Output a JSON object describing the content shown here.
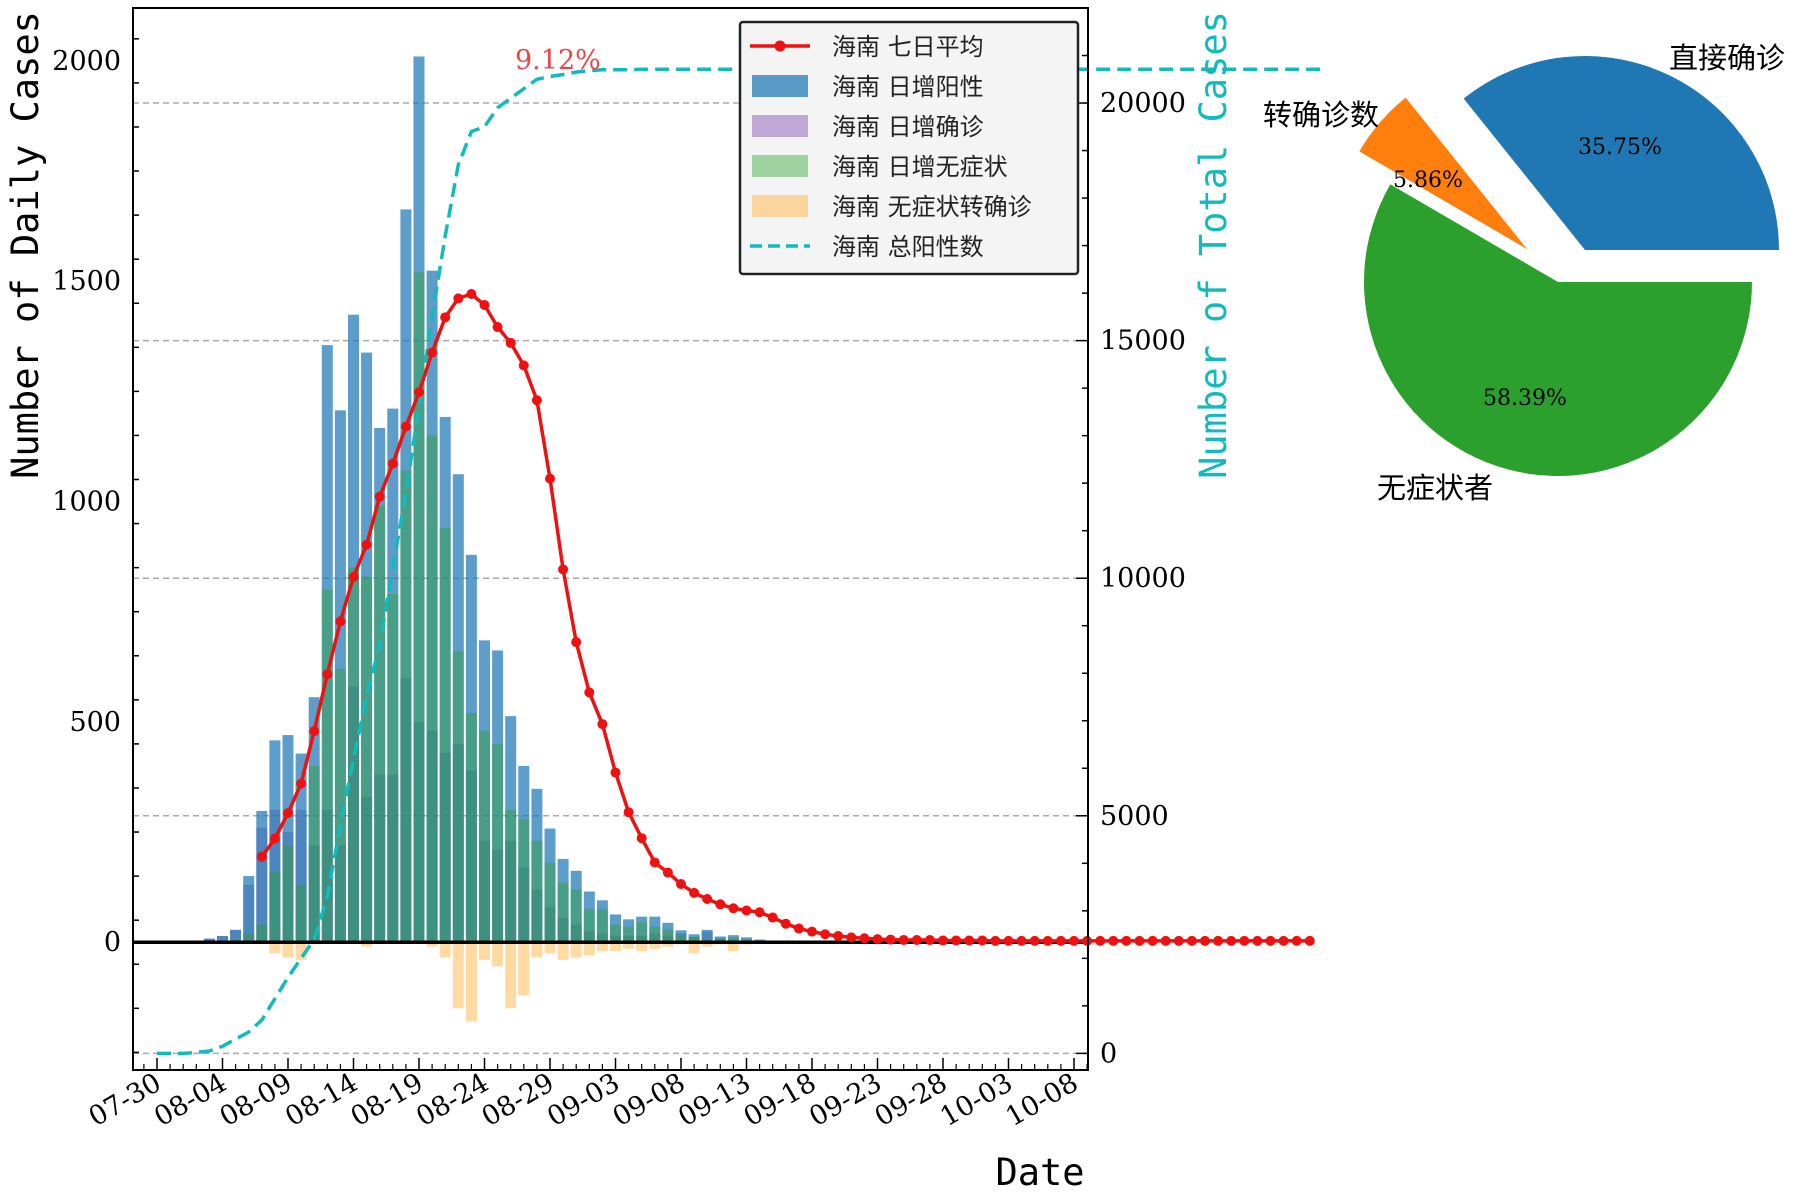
{
  "chart_data": [
    {
      "type": "bar+line",
      "xlabel": "Date",
      "ylabel_left": "Number of Daily Cases",
      "ylabel_right": "Number of Total Cases",
      "ylim_left": [
        -290,
        2120
      ],
      "ylim_right": [
        -350,
        22000
      ],
      "yticks_left": [
        0,
        500,
        1000,
        1500,
        2000
      ],
      "yticks_right": [
        0,
        5000,
        10000,
        15000,
        20000
      ],
      "xtick_labels": [
        "07-30",
        "08-04",
        "08-09",
        "08-14",
        "08-19",
        "08-24",
        "08-29",
        "09-03",
        "09-08",
        "09-13",
        "09-18",
        "09-23",
        "09-28",
        "10-03",
        "10-08"
      ],
      "legend_position": "upper-right",
      "annotation": "9.12%",
      "colors": {
        "positive": "#1f77b4",
        "confirmed": "#9467bd",
        "asymptomatic": "#2ca02c",
        "converted": "#ffbb55",
        "avg": "#ee1111",
        "total": "#11bbbb"
      },
      "series": [
        {
          "name": "海南 七日平均",
          "values": [
            null,
            null,
            null,
            null,
            null,
            null,
            null,
            null,
            194,
            235,
            293,
            360,
            479,
            608,
            728,
            829,
            902,
            1011,
            1086,
            1170,
            1248,
            1338,
            1418,
            1461,
            1471,
            1446,
            1396,
            1360,
            1309,
            1230,
            1052,
            846,
            681,
            567,
            495,
            385,
            295,
            236,
            181,
            158,
            132,
            112,
            98,
            86,
            77,
            72,
            68,
            56,
            42,
            31,
            24,
            18,
            14,
            11,
            9,
            7,
            6,
            5,
            5,
            5,
            4,
            4,
            4,
            4,
            3,
            3,
            3,
            3,
            3,
            3,
            3,
            3,
            3,
            3,
            3,
            3,
            3,
            3,
            3,
            3,
            3,
            3,
            3,
            3,
            3,
            3,
            3,
            3,
            3
          ]
        },
        {
          "name": "海南 日增阳性",
          "values": [
            0,
            0,
            0,
            0,
            8,
            14,
            28,
            150,
            298,
            458,
            470,
            428,
            556,
            1355,
            1207,
            1424,
            1338,
            1167,
            1211,
            1663,
            2010,
            1524,
            1192,
            1062,
            879,
            685,
            662,
            513,
            400,
            348,
            258,
            189,
            162,
            115,
            95,
            63,
            52,
            58,
            58,
            44,
            27,
            18,
            28,
            13,
            16,
            11,
            6,
            2,
            0,
            0,
            0,
            0,
            0,
            0,
            0,
            0,
            0,
            0,
            0,
            0,
            0,
            0,
            0,
            0,
            0,
            0,
            0,
            0,
            0,
            0,
            0,
            0,
            0,
            0,
            0,
            0,
            0,
            0,
            0,
            0,
            0,
            0,
            0,
            0,
            0,
            0,
            0,
            0,
            0
          ]
        },
        {
          "name": "海南 日增确诊",
          "values": [
            0,
            0,
            0,
            0,
            8,
            14,
            28,
            130,
            260,
            300,
            250,
            300,
            220,
            300,
            220,
            580,
            330,
            380,
            380,
            600,
            500,
            480,
            430,
            450,
            390,
            230,
            210,
            230,
            170,
            120,
            80,
            55,
            40,
            25,
            20,
            15,
            15,
            15,
            20,
            15,
            20,
            12,
            24,
            9,
            6,
            4,
            2,
            0,
            0,
            0,
            0,
            0,
            0,
            0,
            0,
            0,
            0,
            0,
            0,
            0,
            0,
            0,
            0,
            0,
            0,
            0,
            0,
            0,
            0,
            0,
            0,
            0,
            0,
            0,
            0,
            0,
            0,
            0,
            0,
            0,
            0,
            0,
            0,
            0,
            0,
            0,
            0,
            0,
            0,
            0
          ]
        },
        {
          "name": "海南 日增无症状",
          "values": [
            0,
            0,
            0,
            0,
            0,
            0,
            5,
            20,
            40,
            160,
            220,
            130,
            400,
            800,
            620,
            850,
            830,
            990,
            790,
            1070,
            1520,
            1150,
            940,
            660,
            520,
            480,
            450,
            300,
            280,
            230,
            180,
            135,
            120,
            75,
            75,
            40,
            35,
            45,
            35,
            30,
            17,
            12,
            7,
            8,
            11,
            7,
            4,
            2,
            0,
            0,
            0,
            0,
            0,
            0,
            0,
            0,
            0,
            0,
            0,
            0,
            0,
            0,
            0,
            0,
            0,
            0,
            0,
            0,
            0,
            0,
            0,
            0,
            0,
            0,
            0,
            0,
            0,
            0,
            0,
            0,
            0,
            0,
            0,
            0,
            0,
            0,
            0,
            0,
            0
          ]
        },
        {
          "name": "海南 无症状转确诊",
          "values": [
            0,
            0,
            0,
            0,
            0,
            0,
            0,
            0,
            0,
            -25,
            -35,
            -40,
            0,
            0,
            0,
            0,
            -10,
            0,
            0,
            0,
            0,
            -10,
            -35,
            -150,
            -180,
            -40,
            -55,
            -150,
            -120,
            -35,
            -25,
            -40,
            -35,
            -30,
            -20,
            -20,
            -15,
            -20,
            -15,
            -10,
            -5,
            -25,
            -10,
            -5,
            -20,
            -5,
            0,
            0,
            0,
            0,
            0,
            0,
            0,
            0,
            0,
            0,
            0,
            0,
            0,
            0,
            0,
            0,
            0,
            0,
            0,
            0,
            0,
            0,
            0,
            0,
            0,
            0,
            0,
            0,
            0,
            0,
            0,
            0,
            0,
            0,
            0,
            0,
            0,
            0,
            0,
            0,
            0,
            0,
            0
          ]
        },
        {
          "name": "海南 总阳性数",
          "values": [
            0,
            0,
            0,
            20,
            50,
            150,
            300,
            450,
            700,
            1150,
            1600,
            2000,
            2400,
            3300,
            4800,
            6200,
            7500,
            8600,
            10200,
            11800,
            13600,
            15500,
            17200,
            18700,
            19400,
            19500,
            19900,
            20100,
            20300,
            20500,
            20560,
            20600,
            20650,
            20680,
            20700,
            20700,
            20700,
            20710,
            20710,
            20710,
            20710,
            20710,
            20710,
            20710,
            20710,
            20710,
            20710,
            20710,
            20710,
            20710,
            20710,
            20710,
            20710,
            20710,
            20710,
            20710,
            20710,
            20710,
            20710,
            20710,
            20710,
            20710,
            20710,
            20710,
            20710,
            20710,
            20710,
            20710,
            20710,
            20710,
            20710,
            20710,
            20710,
            20710,
            20710,
            20710,
            20710,
            20710,
            20710,
            20710,
            20710,
            20710,
            20710,
            20710,
            20710,
            20710,
            20710,
            20710,
            20710,
            20710
          ]
        }
      ]
    },
    {
      "type": "pie",
      "slices": [
        {
          "label": "直接确诊",
          "value": 35.75,
          "pct": "35.75%",
          "color": "#1f77b4"
        },
        {
          "label": "转确诊数",
          "value": 5.86,
          "pct": "5.86%",
          "color": "#ff7f0e"
        },
        {
          "label": "无症状者",
          "value": 58.39,
          "pct": "58.39%",
          "color": "#2ca02c"
        }
      ]
    }
  ]
}
